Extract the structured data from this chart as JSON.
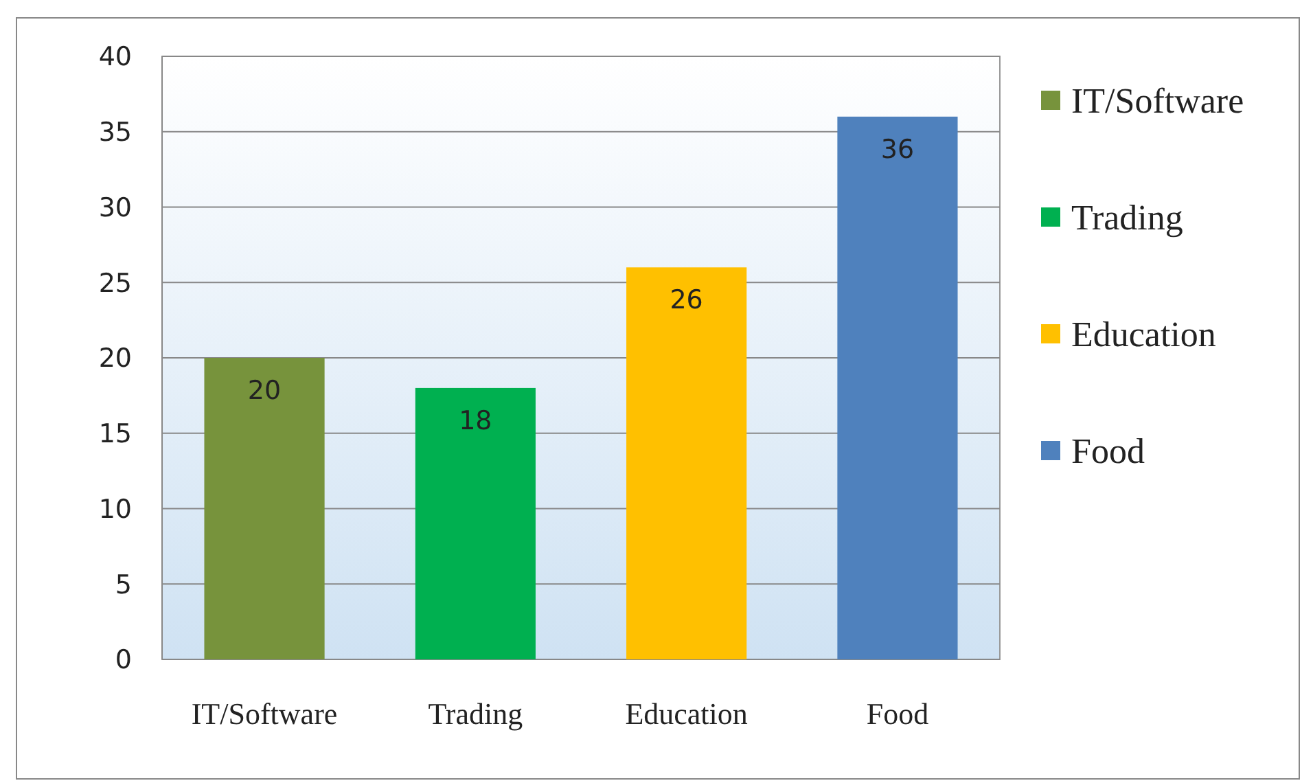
{
  "chart_data": {
    "type": "bar",
    "categories": [
      "IT/Software",
      "Trading",
      "Education",
      "Food"
    ],
    "series": [
      {
        "name": "IT/Software",
        "color": "#77933c",
        "values": [
          20,
          null,
          null,
          null
        ]
      },
      {
        "name": "Trading",
        "color": "#00b050",
        "values": [
          null,
          18,
          null,
          null
        ]
      },
      {
        "name": "Education",
        "color": "#ffc000",
        "values": [
          null,
          null,
          26,
          null
        ]
      },
      {
        "name": "Food",
        "color": "#4f81bd",
        "values": [
          null,
          null,
          null,
          36
        ]
      }
    ],
    "ylim": [
      0,
      40
    ],
    "yticks": [
      0,
      5,
      10,
      15,
      20,
      25,
      30,
      35,
      40
    ],
    "grid": "y",
    "data_labels": true,
    "legend": "right"
  }
}
